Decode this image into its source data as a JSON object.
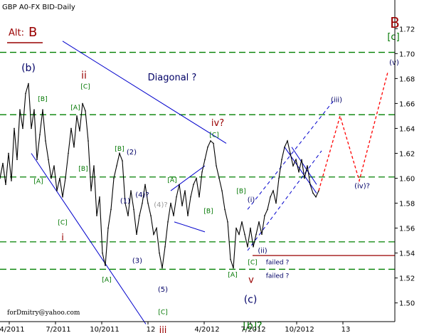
{
  "chart_data": {
    "type": "line",
    "title": "GBP A0-FX BID-Daily",
    "alt_label": "Alt:",
    "alt_value": "B",
    "main_wave_label": "B",
    "diagonal_label": "Diagonal ?",
    "credit": "forDmitry@yahoo.com",
    "ylim": [
      1.485,
      1.735
    ],
    "y_ticks": [
      1.5,
      1.52,
      1.54,
      1.56,
      1.58,
      1.6,
      1.62,
      1.64,
      1.66,
      1.68,
      1.7,
      1.72
    ],
    "x_ticks": [
      {
        "label": "4/2011",
        "x": 13
      },
      {
        "label": "7/2011",
        "x": 78
      },
      {
        "label": "10/2011",
        "x": 143
      },
      {
        "label": "12",
        "x": 208
      },
      {
        "label": "4/2012",
        "x": 287
      },
      {
        "label": "7/2012",
        "x": 352
      },
      {
        "label": "10/2012",
        "x": 417
      },
      {
        "label": "13",
        "x": 482
      }
    ],
    "x_domain": [
      0,
      555
    ],
    "price_series": [
      [
        0,
        1.6
      ],
      [
        4,
        1.612
      ],
      [
        8,
        1.595
      ],
      [
        12,
        1.62
      ],
      [
        16,
        1.598
      ],
      [
        20,
        1.64
      ],
      [
        24,
        1.615
      ],
      [
        28,
        1.655
      ],
      [
        32,
        1.64
      ],
      [
        36,
        1.668
      ],
      [
        40,
        1.676
      ],
      [
        44,
        1.64
      ],
      [
        48,
        1.655
      ],
      [
        52,
        1.615
      ],
      [
        56,
        1.635
      ],
      [
        60,
        1.655
      ],
      [
        64,
        1.63
      ],
      [
        68,
        1.615
      ],
      [
        72,
        1.6
      ],
      [
        76,
        1.61
      ],
      [
        80,
        1.59
      ],
      [
        84,
        1.6
      ],
      [
        88,
        1.585
      ],
      [
        92,
        1.6
      ],
      [
        96,
        1.62
      ],
      [
        100,
        1.64
      ],
      [
        104,
        1.625
      ],
      [
        108,
        1.65
      ],
      [
        112,
        1.638
      ],
      [
        116,
        1.66
      ],
      [
        120,
        1.654
      ],
      [
        124,
        1.63
      ],
      [
        128,
        1.59
      ],
      [
        132,
        1.61
      ],
      [
        136,
        1.57
      ],
      [
        140,
        1.585
      ],
      [
        144,
        1.54
      ],
      [
        148,
        1.53
      ],
      [
        152,
        1.56
      ],
      [
        156,
        1.575
      ],
      [
        160,
        1.6
      ],
      [
        164,
        1.61
      ],
      [
        168,
        1.62
      ],
      [
        172,
        1.614
      ],
      [
        176,
        1.58
      ],
      [
        180,
        1.57
      ],
      [
        184,
        1.59
      ],
      [
        188,
        1.575
      ],
      [
        192,
        1.555
      ],
      [
        196,
        1.57
      ],
      [
        200,
        1.58
      ],
      [
        204,
        1.595
      ],
      [
        208,
        1.58
      ],
      [
        212,
        1.57
      ],
      [
        216,
        1.555
      ],
      [
        220,
        1.56
      ],
      [
        224,
        1.54
      ],
      [
        228,
        1.528
      ],
      [
        232,
        1.545
      ],
      [
        236,
        1.565
      ],
      [
        240,
        1.58
      ],
      [
        244,
        1.57
      ],
      [
        248,
        1.585
      ],
      [
        252,
        1.595
      ],
      [
        256,
        1.578
      ],
      [
        260,
        1.59
      ],
      [
        264,
        1.57
      ],
      [
        268,
        1.585
      ],
      [
        272,
        1.595
      ],
      [
        276,
        1.6
      ],
      [
        280,
        1.585
      ],
      [
        284,
        1.605
      ],
      [
        288,
        1.615
      ],
      [
        292,
        1.625
      ],
      [
        296,
        1.63
      ],
      [
        300,
        1.628
      ],
      [
        304,
        1.61
      ],
      [
        308,
        1.6
      ],
      [
        312,
        1.59
      ],
      [
        316,
        1.575
      ],
      [
        320,
        1.565
      ],
      [
        324,
        1.535
      ],
      [
        328,
        1.528
      ],
      [
        332,
        1.56
      ],
      [
        336,
        1.555
      ],
      [
        340,
        1.565
      ],
      [
        344,
        1.555
      ],
      [
        348,
        1.545
      ],
      [
        352,
        1.56
      ],
      [
        356,
        1.545
      ],
      [
        360,
        1.555
      ],
      [
        364,
        1.565
      ],
      [
        368,
        1.555
      ],
      [
        372,
        1.57
      ],
      [
        376,
        1.575
      ],
      [
        380,
        1.585
      ],
      [
        384,
        1.59
      ],
      [
        388,
        1.58
      ],
      [
        392,
        1.6
      ],
      [
        396,
        1.615
      ],
      [
        400,
        1.625
      ],
      [
        404,
        1.63
      ],
      [
        408,
        1.62
      ],
      [
        412,
        1.61
      ],
      [
        416,
        1.615
      ],
      [
        420,
        1.605
      ],
      [
        424,
        1.615
      ],
      [
        428,
        1.6
      ],
      [
        432,
        1.61
      ],
      [
        436,
        1.595
      ],
      [
        440,
        1.588
      ],
      [
        444,
        1.585
      ],
      [
        448,
        1.59
      ]
    ],
    "projection": [
      [
        448,
        1.59
      ],
      [
        478,
        1.65
      ],
      [
        505,
        1.598
      ],
      [
        545,
        1.685
      ]
    ],
    "horizontal_levels": [
      {
        "y": 1.701,
        "color": "#008000",
        "dash": true
      },
      {
        "y": 1.651,
        "color": "#008000",
        "dash": true
      },
      {
        "y": 1.601,
        "color": "#008000",
        "dash": true
      },
      {
        "y": 1.549,
        "color": "#008000",
        "dash": true
      },
      {
        "y": 1.527,
        "color": "#008000",
        "dash": true
      },
      {
        "y": 1.538,
        "color": "#990000",
        "dash": false,
        "x1": 355,
        "x2": 555
      }
    ],
    "trend_lines": [
      {
        "points": [
          [
            88,
            1.71
          ],
          [
            318,
            1.628
          ]
        ],
        "dash": false
      },
      {
        "points": [
          [
            44,
            1.62
          ],
          [
            205,
            1.483
          ]
        ],
        "dash": false
      },
      {
        "points": [
          [
            240,
            1.59
          ],
          [
            288,
            1.61
          ]
        ],
        "dash": false
      },
      {
        "points": [
          [
            245,
            1.565
          ],
          [
            288,
            1.557
          ]
        ],
        "dash": false
      },
      {
        "points": [
          [
            348,
            1.575
          ],
          [
            470,
            1.663
          ]
        ],
        "dash": true
      },
      {
        "points": [
          [
            348,
            1.542
          ],
          [
            452,
            1.622
          ]
        ],
        "dash": true
      },
      {
        "points": [
          [
            400,
            1.625
          ],
          [
            445,
            1.588
          ]
        ],
        "dash": false
      },
      {
        "points": [
          [
            410,
            1.625
          ],
          [
            445,
            1.595
          ]
        ],
        "dash": false
      }
    ],
    "wave_labels": [
      {
        "text": "(b)",
        "x": 40,
        "y": 1.686,
        "color": "#000066",
        "size": 14
      },
      {
        "text": "ii",
        "x": 118,
        "y": 1.68,
        "color": "#990000",
        "size": 14
      },
      {
        "text": "[B]",
        "x": 60,
        "y": 1.662,
        "color": "#007700",
        "size": 9
      },
      {
        "text": "[C]",
        "x": 120,
        "y": 1.672,
        "color": "#007700",
        "size": 9
      },
      {
        "text": "[A]",
        "x": 106,
        "y": 1.655,
        "color": "#007700",
        "size": 9
      },
      {
        "text": "[B]",
        "x": 117,
        "y": 1.606,
        "color": "#007700",
        "size": 9
      },
      {
        "text": "[A]",
        "x": 54,
        "y": 1.596,
        "color": "#007700",
        "size": 9
      },
      {
        "text": "[C]",
        "x": 88,
        "y": 1.563,
        "color": "#007700",
        "size": 9
      },
      {
        "text": "i",
        "x": 88,
        "y": 1.55,
        "color": "#990000",
        "size": 13
      },
      {
        "text": "[A]",
        "x": 150,
        "y": 1.517,
        "color": "#007700",
        "size": 9
      },
      {
        "text": "[B]",
        "x": 168,
        "y": 1.622,
        "color": "#007700",
        "size": 9
      },
      {
        "text": "(2)",
        "x": 185,
        "y": 1.619,
        "color": "#000066",
        "size": 10
      },
      {
        "text": "(1)",
        "x": 176,
        "y": 1.58,
        "color": "#000066",
        "size": 10
      },
      {
        "text": "(4)?",
        "x": 200,
        "y": 1.585,
        "color": "#000066",
        "size": 10
      },
      {
        "text": "(4)?",
        "x": 226,
        "y": 1.577,
        "color": "#999999",
        "size": 10
      },
      {
        "text": "(3)",
        "x": 193,
        "y": 1.532,
        "color": "#000066",
        "size": 10
      },
      {
        "text": "(5)",
        "x": 229,
        "y": 1.509,
        "color": "#000066",
        "size": 10
      },
      {
        "text": "[C]",
        "x": 229,
        "y": 1.491,
        "color": "#007700",
        "size": 9
      },
      {
        "text": "iii",
        "x": 229,
        "y": 1.476,
        "color": "#990000",
        "size": 13
      },
      {
        "text": "[A]",
        "x": 242,
        "y": 1.597,
        "color": "#007700",
        "size": 9
      },
      {
        "text": "[B]",
        "x": 293,
        "y": 1.572,
        "color": "#007700",
        "size": 9
      },
      {
        "text": "iv?",
        "x": 306,
        "y": 1.642,
        "color": "#990000",
        "size": 13
      },
      {
        "text": "[C]",
        "x": 301,
        "y": 1.633,
        "color": "#007700",
        "size": 9
      },
      {
        "text": "[A]",
        "x": 327,
        "y": 1.521,
        "color": "#007700",
        "size": 9
      },
      {
        "text": "[B]",
        "x": 339,
        "y": 1.588,
        "color": "#007700",
        "size": 9
      },
      {
        "text": "(i)",
        "x": 353,
        "y": 1.581,
        "color": "#000066",
        "size": 10
      },
      {
        "text": "(ii)",
        "x": 369,
        "y": 1.54,
        "color": "#000066",
        "size": 10
      },
      {
        "text": "[C]",
        "x": 355,
        "y": 1.531,
        "color": "#007700",
        "size": 9
      },
      {
        "text": "v",
        "x": 353,
        "y": 1.516,
        "color": "#990000",
        "size": 13
      },
      {
        "text": "(c)",
        "x": 352,
        "y": 1.5,
        "color": "#000066",
        "size": 14
      },
      {
        "text": "[b]?",
        "x": 355,
        "y": 1.479,
        "color": "#007700",
        "size": 14
      },
      {
        "text": "(iii)",
        "x": 473,
        "y": 1.661,
        "color": "#000066",
        "size": 10
      },
      {
        "text": "(iv)?",
        "x": 509,
        "y": 1.592,
        "color": "#000066",
        "size": 10
      },
      {
        "text": "(v)",
        "x": 554,
        "y": 1.691,
        "color": "#000066",
        "size": 10
      },
      {
        "text": "[c]",
        "x": 553,
        "y": 1.711,
        "color": "#007700",
        "size": 13
      },
      {
        "text": "failed ?",
        "x": 390,
        "y": 1.531,
        "color": "#000066",
        "size": 9
      },
      {
        "text": "failed ?",
        "x": 390,
        "y": 1.52,
        "color": "#000066",
        "size": 9
      }
    ],
    "colors": {
      "price": "#000000",
      "trend": "#0000cc",
      "projection": "#ff0000",
      "title_red": "#990000",
      "level_green": "#008000"
    },
    "grid": false
  }
}
